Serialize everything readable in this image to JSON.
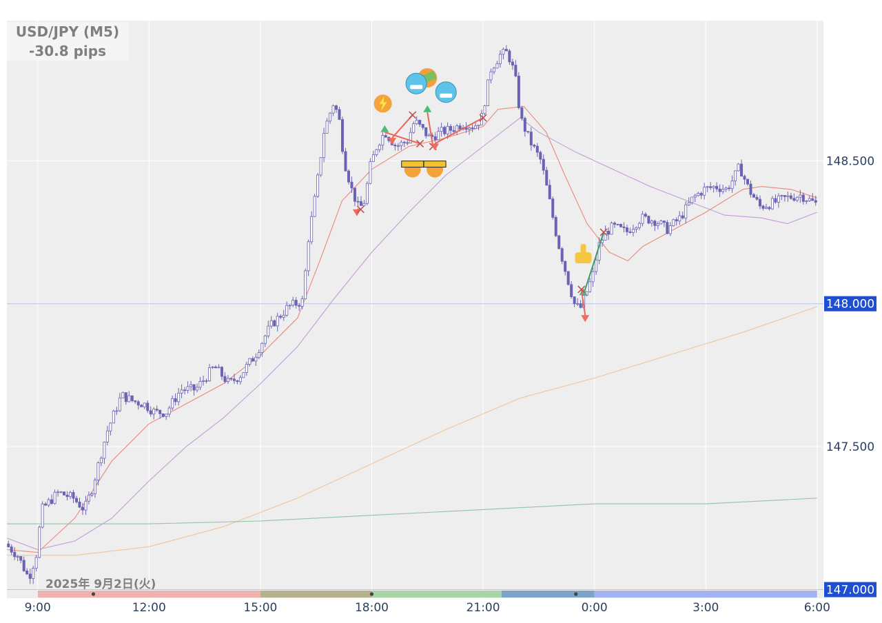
{
  "title": {
    "pair": "USD/JPY (M5)",
    "pips": "-30.8 pips"
  },
  "date_label": "2025年 9月2日(火)",
  "chart_data": {
    "type": "candlestick",
    "ylim": [
      146.97,
      148.99
    ],
    "x_range_hours": [
      8.17,
      30.17
    ],
    "x_ticks": [
      {
        "h": 9,
        "label": "9:00"
      },
      {
        "h": 12,
        "label": "12:00"
      },
      {
        "h": 15,
        "label": "15:00"
      },
      {
        "h": 18,
        "label": "18:00"
      },
      {
        "h": 21,
        "label": "21:00"
      },
      {
        "h": 24,
        "label": "0:00"
      },
      {
        "h": 27,
        "label": "3:00"
      },
      {
        "h": 30,
        "label": "6:00"
      }
    ],
    "y_ticks": [
      {
        "v": 148.5,
        "label": "148.500",
        "highlight": false
      },
      {
        "v": 148.0,
        "label": "148.000",
        "highlight": true
      },
      {
        "v": 147.5,
        "label": "147.500",
        "highlight": false
      },
      {
        "v": 147.0,
        "label": "147.000",
        "highlight": true
      }
    ],
    "price_path": [
      [
        8.17,
        147.16
      ],
      [
        8.5,
        147.12
      ],
      [
        8.8,
        147.04
      ],
      [
        9.0,
        147.12
      ],
      [
        9.15,
        147.28
      ],
      [
        9.6,
        147.34
      ],
      [
        10.0,
        147.32
      ],
      [
        10.3,
        147.28
      ],
      [
        10.5,
        147.35
      ],
      [
        10.9,
        147.55
      ],
      [
        11.3,
        147.68
      ],
      [
        11.6,
        147.66
      ],
      [
        11.9,
        147.65
      ],
      [
        12.2,
        147.62
      ],
      [
        12.5,
        147.62
      ],
      [
        12.9,
        147.7
      ],
      [
        13.3,
        147.7
      ],
      [
        13.8,
        147.78
      ],
      [
        14.2,
        147.72
      ],
      [
        14.5,
        147.75
      ],
      [
        14.9,
        147.82
      ],
      [
        15.3,
        147.92
      ],
      [
        15.8,
        147.99
      ],
      [
        16.2,
        148.01
      ],
      [
        16.3,
        148.2
      ],
      [
        16.55,
        148.4
      ],
      [
        16.75,
        148.6
      ],
      [
        17.0,
        148.7
      ],
      [
        17.15,
        148.66
      ],
      [
        17.3,
        148.5
      ],
      [
        17.5,
        148.4
      ],
      [
        17.7,
        148.33
      ],
      [
        17.85,
        148.36
      ],
      [
        18.0,
        148.48
      ],
      [
        18.2,
        148.56
      ],
      [
        18.4,
        148.6
      ],
      [
        18.7,
        148.55
      ],
      [
        19.0,
        148.57
      ],
      [
        19.2,
        148.64
      ],
      [
        19.4,
        148.61
      ],
      [
        19.6,
        148.58
      ],
      [
        19.9,
        148.6
      ],
      [
        20.2,
        148.61
      ],
      [
        20.5,
        148.63
      ],
      [
        20.8,
        148.62
      ],
      [
        21.0,
        148.65
      ],
      [
        21.25,
        148.82
      ],
      [
        21.5,
        148.87
      ],
      [
        21.7,
        148.88
      ],
      [
        21.9,
        148.8
      ],
      [
        22.05,
        148.65
      ],
      [
        22.3,
        148.57
      ],
      [
        22.6,
        148.5
      ],
      [
        22.8,
        148.38
      ],
      [
        23.05,
        148.22
      ],
      [
        23.25,
        148.12
      ],
      [
        23.5,
        148.0
      ],
      [
        23.65,
        147.98
      ],
      [
        23.8,
        148.03
      ],
      [
        24.0,
        148.1
      ],
      [
        24.15,
        148.2
      ],
      [
        24.35,
        148.25
      ],
      [
        24.55,
        148.27
      ],
      [
        24.9,
        148.25
      ],
      [
        25.3,
        148.3
      ],
      [
        25.7,
        148.29
      ],
      [
        26.0,
        148.26
      ],
      [
        26.35,
        148.3
      ],
      [
        26.7,
        148.37
      ],
      [
        27.0,
        148.4
      ],
      [
        27.3,
        148.41
      ],
      [
        27.6,
        148.4
      ],
      [
        27.8,
        148.44
      ],
      [
        27.95,
        148.48
      ],
      [
        28.2,
        148.4
      ],
      [
        28.5,
        148.34
      ],
      [
        28.8,
        148.35
      ],
      [
        29.2,
        148.37
      ],
      [
        29.6,
        148.38
      ],
      [
        30.0,
        148.35
      ]
    ],
    "moving_averages": [
      {
        "color": "#e8897a",
        "points": [
          [
            8.17,
            147.14
          ],
          [
            9.0,
            147.13
          ],
          [
            10.0,
            147.25
          ],
          [
            11.0,
            147.45
          ],
          [
            12.0,
            147.58
          ],
          [
            13.0,
            147.65
          ],
          [
            14.0,
            147.72
          ],
          [
            15.0,
            147.82
          ],
          [
            16.0,
            147.95
          ],
          [
            16.6,
            148.15
          ],
          [
            17.2,
            148.36
          ],
          [
            18.0,
            148.47
          ],
          [
            19.0,
            148.55
          ],
          [
            20.0,
            148.58
          ],
          [
            21.0,
            148.62
          ],
          [
            21.4,
            148.68
          ],
          [
            22.1,
            148.69
          ],
          [
            22.7,
            148.6
          ],
          [
            23.2,
            148.45
          ],
          [
            23.8,
            148.28
          ],
          [
            24.4,
            148.18
          ],
          [
            24.9,
            148.15
          ],
          [
            25.3,
            148.2
          ],
          [
            26.0,
            148.25
          ],
          [
            27.0,
            148.32
          ],
          [
            28.0,
            148.4
          ],
          [
            28.5,
            148.41
          ],
          [
            29.3,
            148.4
          ],
          [
            30.0,
            148.37
          ]
        ]
      },
      {
        "color": "#c49ad6",
        "points": [
          [
            8.17,
            147.18
          ],
          [
            9.0,
            147.14
          ],
          [
            10.0,
            147.17
          ],
          [
            11.0,
            147.25
          ],
          [
            12.0,
            147.38
          ],
          [
            13.0,
            147.5
          ],
          [
            14.0,
            147.6
          ],
          [
            15.0,
            147.72
          ],
          [
            16.0,
            147.85
          ],
          [
            17.0,
            148.02
          ],
          [
            18.0,
            148.18
          ],
          [
            19.0,
            148.32
          ],
          [
            20.0,
            148.45
          ],
          [
            21.0,
            148.55
          ],
          [
            22.0,
            148.65
          ],
          [
            22.5,
            148.6
          ],
          [
            23.5,
            148.53
          ],
          [
            24.5,
            148.47
          ],
          [
            25.5,
            148.41
          ],
          [
            26.5,
            148.36
          ],
          [
            27.5,
            148.31
          ],
          [
            28.5,
            148.3
          ],
          [
            29.2,
            148.28
          ],
          [
            30.0,
            148.32
          ]
        ]
      },
      {
        "color": "#f0c49a",
        "points": [
          [
            8.17,
            147.12
          ],
          [
            10.0,
            147.12
          ],
          [
            12.0,
            147.15
          ],
          [
            14.0,
            147.22
          ],
          [
            16.0,
            147.32
          ],
          [
            18.0,
            147.44
          ],
          [
            20.0,
            147.56
          ],
          [
            22.0,
            147.67
          ],
          [
            24.0,
            147.74
          ],
          [
            26.0,
            147.82
          ],
          [
            28.0,
            147.9
          ],
          [
            30.0,
            147.99
          ]
        ]
      },
      {
        "color": "#8fc4a6",
        "points": [
          [
            8.17,
            147.23
          ],
          [
            12.0,
            147.23
          ],
          [
            15.0,
            147.24
          ],
          [
            18.0,
            147.26
          ],
          [
            21.0,
            147.28
          ],
          [
            24.0,
            147.3
          ],
          [
            27.0,
            147.3
          ],
          [
            30.0,
            147.32
          ]
        ]
      }
    ],
    "trades": [
      {
        "type": "long",
        "entry": [
          18.35,
          148.6
        ],
        "exit": [
          19.3,
          148.56
        ],
        "result": "loss"
      },
      {
        "type": "short",
        "entry": [
          18.55,
          148.58
        ],
        "exit": [
          19.1,
          148.66
        ],
        "result": "loss"
      },
      {
        "type": "long",
        "entry": [
          19.5,
          148.67
        ],
        "exit": [
          19.65,
          148.55
        ],
        "result": "loss"
      },
      {
        "type": "short",
        "entry": [
          17.6,
          148.33
        ],
        "exit": [
          17.7,
          148.33
        ],
        "result": "loss"
      },
      {
        "type": "short",
        "entry": [
          19.7,
          148.56
        ],
        "exit": [
          21.0,
          148.65
        ],
        "result": "loss"
      },
      {
        "type": "long",
        "entry": [
          23.7,
          148.03
        ],
        "exit": [
          24.25,
          148.25
        ],
        "result": "win"
      },
      {
        "type": "short",
        "entry": [
          23.75,
          147.96
        ],
        "exit": [
          23.65,
          148.05
        ],
        "result": "loss"
      }
    ],
    "emoji_markers": [
      {
        "h": 18.3,
        "v": 148.7,
        "icon": "fire-lightning"
      },
      {
        "h": 19.5,
        "v": 148.79,
        "icon": "money-fire"
      },
      {
        "h": 19.2,
        "v": 148.77,
        "icon": "cold-face"
      },
      {
        "h": 20.0,
        "v": 148.74,
        "icon": "cold-face"
      },
      {
        "h": 19.1,
        "v": 148.48,
        "icon": "fire-barrier"
      },
      {
        "h": 19.7,
        "v": 148.48,
        "icon": "fire-barrier"
      },
      {
        "h": 23.7,
        "v": 148.17,
        "icon": "thumbs-up"
      }
    ],
    "sessions": [
      {
        "from": 9.0,
        "to": 15.0,
        "color": "#efb0b0"
      },
      {
        "from": 15.0,
        "to": 18.0,
        "color": "#b5b08e"
      },
      {
        "from": 18.0,
        "to": 21.5,
        "color": "#a8d4a8"
      },
      {
        "from": 21.5,
        "to": 24.0,
        "color": "#7ba3c9"
      },
      {
        "from": 24.0,
        "to": 30.0,
        "color": "#a2b2ee"
      }
    ],
    "session_dots": [
      10.5,
      18.0,
      23.5
    ],
    "colors": {
      "candle": "#6a62b3",
      "grid": "#ffffff",
      "plot_bg": "#eeeeee",
      "price_label_bg": "#1f4fd0"
    }
  }
}
